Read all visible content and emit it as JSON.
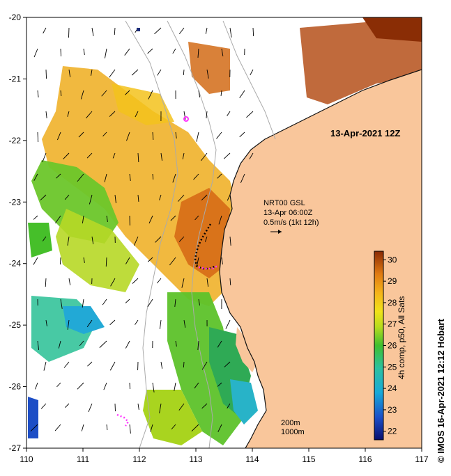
{
  "map": {
    "title": "13-Apr-2021 12Z",
    "lon_range": [
      110,
      117
    ],
    "lat_range": [
      -27,
      -20
    ],
    "x_ticks": [
      "110",
      "111",
      "112",
      "113",
      "114",
      "115",
      "116",
      "117"
    ],
    "y_ticks": [
      "-20",
      "-21",
      "-22",
      "-23",
      "-24",
      "-25",
      "-26",
      "-27"
    ],
    "land_color": "#f9c69b"
  },
  "current_annotation": {
    "line1": "NRT00 GSL",
    "line2": "13-Apr 06:00Z",
    "line3": "0.5m/s (1kt 12h)"
  },
  "isobath_labels": {
    "shallow": "200m",
    "deep": "1000m"
  },
  "colorbar": {
    "label": "4h comp, p50, All Sats",
    "ticks": [
      "30",
      "29",
      "28",
      "27",
      "26",
      "25",
      "24",
      "23",
      "22"
    ],
    "min": 21.6,
    "max": 30.4
  },
  "credit": "© IMOS 16-Apr-2021 12:12 Hobart"
}
